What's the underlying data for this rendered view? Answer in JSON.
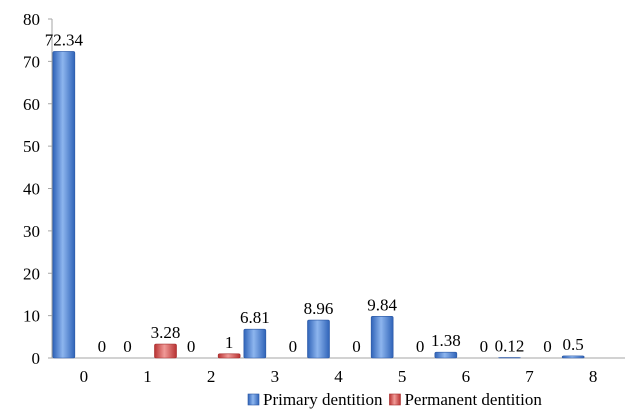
{
  "chart_data": {
    "type": "bar",
    "categories": [
      "0",
      "1",
      "2",
      "3",
      "4",
      "5",
      "6",
      "7",
      "8"
    ],
    "series": [
      {
        "name": "Primary dentition",
        "values": [
          72.34,
          0,
          0,
          6.81,
          8.96,
          9.84,
          1.38,
          0.12,
          0.5
        ],
        "labels": [
          "72.34",
          "0",
          "0",
          "6.81",
          "8.96",
          "9.84",
          "1.38",
          "0.12",
          "0.5"
        ],
        "color": "#4a7cc9"
      },
      {
        "name": "Permanent dentition",
        "values": [
          0,
          3.28,
          1,
          0,
          0,
          0,
          0,
          0,
          null
        ],
        "labels": [
          "0",
          "3.28",
          "1",
          "0",
          "0",
          "0",
          "0",
          "0",
          ""
        ],
        "color": "#d9534f"
      }
    ],
    "ylim": [
      0,
      80
    ],
    "yticks": [
      "0",
      "10",
      "20",
      "30",
      "40",
      "50",
      "60",
      "70",
      "80"
    ],
    "grid": false,
    "legend_position": "bottom"
  }
}
